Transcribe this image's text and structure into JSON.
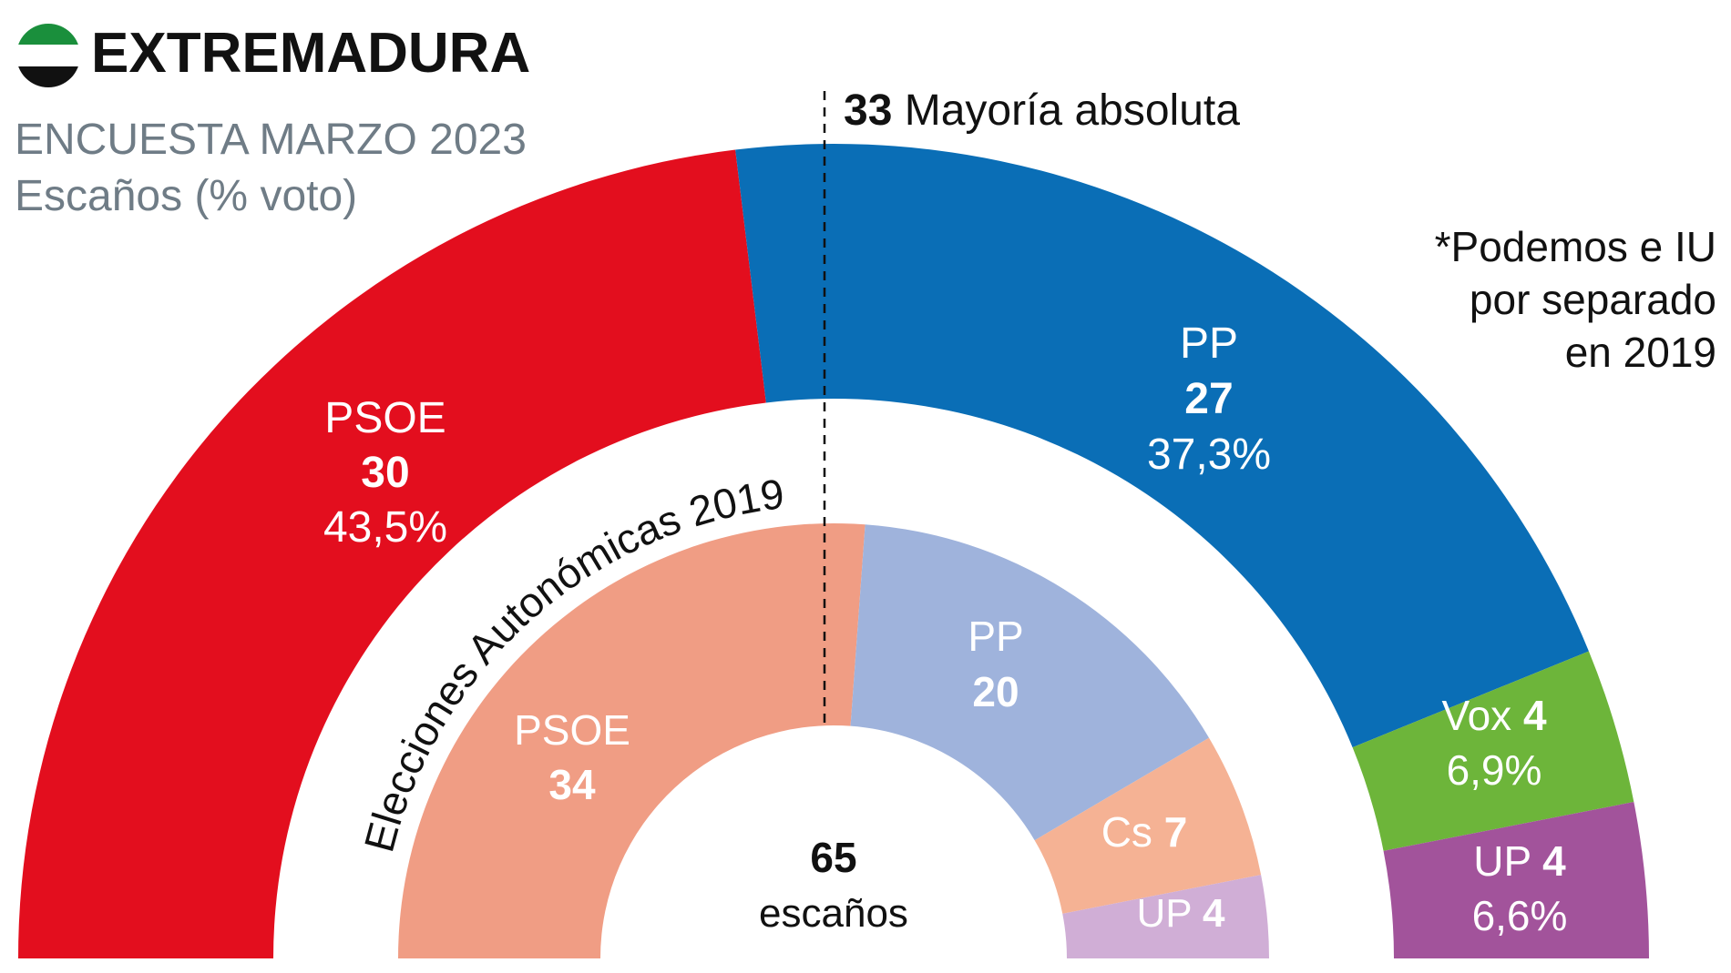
{
  "header": {
    "title": "EXTREMADURA",
    "flag_colors": [
      "#1a8f3c",
      "#ffffff",
      "#111111"
    ],
    "subtitle": "ENCUESTA MARZO 2023",
    "unit_label": "Escaños (% voto)"
  },
  "majority": {
    "seats": "33",
    "label": "Mayoría absoluta"
  },
  "note": {
    "line1": "*Podemos e IU",
    "line2": "por separado",
    "line3": "en 2019"
  },
  "center": {
    "total": "65",
    "label": "escaños"
  },
  "chart_data": {
    "type": "hemicycle",
    "total_seats": 65,
    "majority": 33,
    "rings": [
      {
        "name": "ENCUESTA MARZO 2023",
        "parties": [
          {
            "party": "PSOE",
            "seats": 30,
            "vote_pct": "43,5%",
            "color": "#e30e1e"
          },
          {
            "party": "PP",
            "seats": 27,
            "vote_pct": "37,3%",
            "color": "#0a6eb6"
          },
          {
            "party": "Vox",
            "seats": 4,
            "vote_pct": "6,9%",
            "color": "#6db53a"
          },
          {
            "party": "UP",
            "seats": 4,
            "vote_pct": "6,6%",
            "color": "#a2539b"
          }
        ]
      },
      {
        "name": "Elecciones Autonómicas 2019",
        "parties": [
          {
            "party": "PSOE",
            "seats": 34,
            "color": "#f09d84"
          },
          {
            "party": "PP",
            "seats": 20,
            "color": "#9fb3dc"
          },
          {
            "party": "Cs",
            "seats": 7,
            "color": "#f5b294"
          },
          {
            "party": "UP",
            "seats": 4,
            "color": "#d0aed6"
          }
        ]
      }
    ]
  }
}
